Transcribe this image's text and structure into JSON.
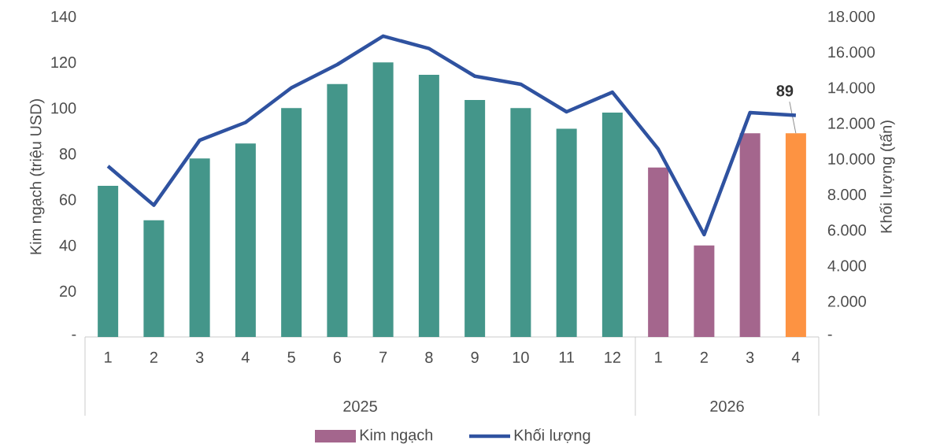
{
  "chart_data": {
    "type": "bar",
    "xlabel": null,
    "ylabel": "Kim ngạch (triệu USD)",
    "y2label": "Khối lượng (tấn)",
    "categories": [
      "1",
      "2",
      "3",
      "4",
      "5",
      "6",
      "7",
      "8",
      "9",
      "10",
      "11",
      "12",
      "1",
      "2",
      "3",
      "4"
    ],
    "series": [
      {
        "name": "Kim ngạch",
        "color": "#a4668d",
        "colors": [
          "#44968a",
          "#44968a",
          "#44968a",
          "#44968a",
          "#44968a",
          "#44968a",
          "#44968a",
          "#44968a",
          "#44968a",
          "#44968a",
          "#44968a",
          "#44968a",
          "#a4668d",
          "#a4668d",
          "#a4668d",
          "#fd9342"
        ],
        "values": [
          66,
          51,
          78,
          84.5,
          100,
          110.5,
          120,
          114.5,
          103.5,
          100,
          91,
          98,
          74,
          40,
          89,
          89
        ],
        "value_labels": [
          null,
          null,
          null,
          null,
          null,
          null,
          null,
          null,
          null,
          null,
          null,
          null,
          null,
          null,
          null,
          "89"
        ]
      },
      {
        "name": "Khối lượng",
        "type": "line",
        "axis": "y2",
        "color": "#2f52a0",
        "marker": "none",
        "line_style": "solid",
        "values": [
          9600,
          7400,
          11050,
          12050,
          14000,
          15300,
          16900,
          16200,
          14650,
          14200,
          12650,
          13750,
          10550,
          5750,
          12600,
          12450
        ]
      }
    ],
    "annotations": [
      "2025",
      "2026"
    ],
    "ylim": [
      0,
      140
    ],
    "yticks": [
      {
        "value": 0,
        "label": "-"
      },
      20,
      40,
      60,
      80,
      100,
      120,
      140
    ],
    "y2lim": [
      0,
      18000
    ],
    "y2ticks": [
      {
        "value": 0,
        "label": "-"
      },
      {
        "value": 2000,
        "label": "2.000"
      },
      {
        "value": 4000,
        "label": "4.000"
      },
      {
        "value": 6000,
        "label": "6.000"
      },
      {
        "value": 8000,
        "label": "8.000"
      },
      {
        "value": 10000,
        "label": "10.000"
      },
      {
        "value": 12000,
        "label": "12.000"
      },
      {
        "value": 14000,
        "label": "14.000"
      },
      {
        "value": 16000,
        "label": "16.000"
      },
      {
        "value": 18000,
        "label": "18.000"
      }
    ],
    "grid": false,
    "legend": "bottom"
  }
}
